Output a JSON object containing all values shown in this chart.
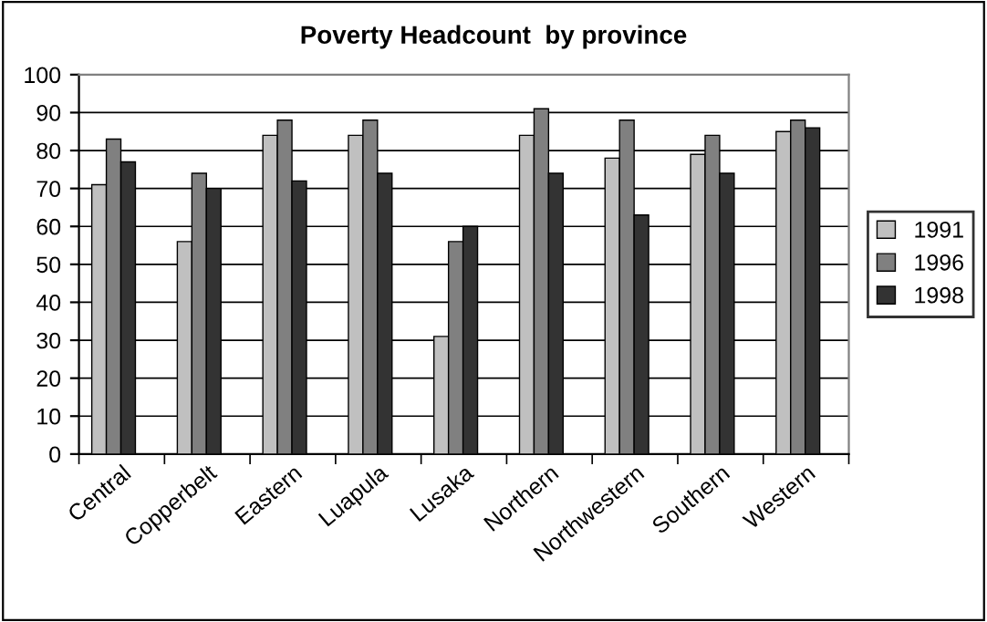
{
  "chart_data": {
    "type": "bar",
    "title": "Poverty Headcount  by province",
    "categories": [
      "Central",
      "Copperbelt",
      "Eastern",
      "Luapula",
      "Lusaka",
      "Northern",
      "Northwestern",
      "Southern",
      "Western"
    ],
    "series": [
      {
        "name": "1991",
        "color": "#c0c0c0",
        "values": [
          71,
          56,
          84,
          84,
          31,
          84,
          78,
          79,
          85
        ]
      },
      {
        "name": "1996",
        "color": "#808080",
        "values": [
          83,
          74,
          88,
          88,
          56,
          91,
          88,
          84,
          88
        ]
      },
      {
        "name": "1998",
        "color": "#333333",
        "values": [
          77,
          70,
          72,
          74,
          60,
          74,
          63,
          74,
          86
        ]
      }
    ],
    "ylim": [
      0,
      100
    ],
    "yticks": [
      0,
      10,
      20,
      30,
      40,
      50,
      60,
      70,
      80,
      90,
      100
    ],
    "grid": "y",
    "legend": "right"
  }
}
